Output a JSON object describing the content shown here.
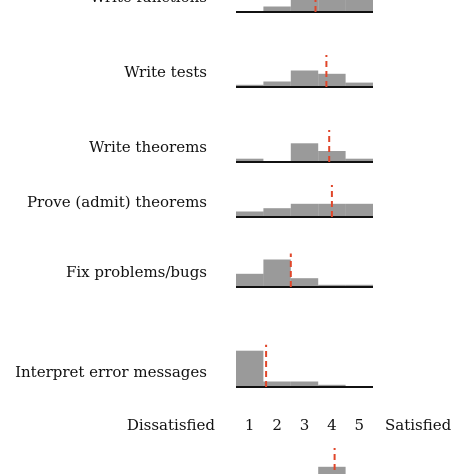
{
  "chart_data": {
    "type": "bar",
    "title": "",
    "xlabel_left": "Dissatisfied",
    "xlabel_right": "Satisfied",
    "categories": [
      "1",
      "2",
      "3",
      "4",
      "5"
    ],
    "bar_color": "#9a9a9a",
    "mean_color": "#e0462a",
    "baseline_color": "#111111",
    "series": [
      {
        "name": "Write functions",
        "values": [
          0,
          0.05,
          0.45,
          0.45,
          0.35
        ],
        "mean": 3.4
      },
      {
        "name": "Write tests",
        "values": [
          0.02,
          0.05,
          0.15,
          0.12,
          0.04
        ],
        "mean": 3.8
      },
      {
        "name": "Write theorems",
        "values": [
          0.03,
          0.0,
          0.17,
          0.1,
          0.03
        ],
        "mean": 3.9
      },
      {
        "name": "Prove (admit) theorems",
        "values": [
          0.05,
          0.08,
          0.12,
          0.12,
          0.12
        ],
        "mean": 4.0
      },
      {
        "name": "Fix problems/bugs",
        "values": [
          0.12,
          0.25,
          0.08,
          0.02,
          0.02
        ],
        "mean": 2.5
      },
      {
        "name": "Interpret error messages",
        "values": [
          0.33,
          0.05,
          0.05,
          0.02,
          0.0
        ],
        "mean": 1.6
      },
      {
        "name": "",
        "values": [
          0,
          0,
          0.02,
          0.12,
          0
        ],
        "mean": 4.1
      }
    ]
  }
}
